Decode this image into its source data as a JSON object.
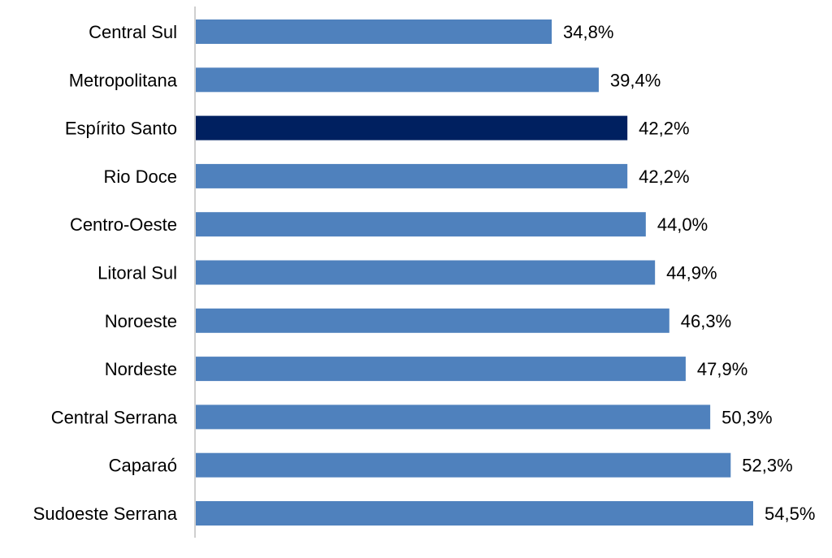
{
  "chart_data": {
    "type": "bar",
    "orientation": "horizontal",
    "categories": [
      "Central Sul",
      "Metropolitana",
      "Espírito Santo",
      "Rio Doce",
      "Centro-Oeste",
      "Litoral Sul",
      "Noroeste",
      "Nordeste",
      "Central Serrana",
      "Caparaó",
      "Sudoeste Serrana"
    ],
    "values": [
      34.8,
      39.4,
      42.2,
      42.2,
      44.0,
      44.9,
      46.3,
      47.9,
      50.3,
      52.3,
      54.5
    ],
    "value_labels": [
      "34,8%",
      "39,4%",
      "42,2%",
      "42,2%",
      "44,0%",
      "44,9%",
      "46,3%",
      "47,9%",
      "50,3%",
      "52,3%",
      "54,5%"
    ],
    "title": "",
    "xlabel": "",
    "ylabel": "",
    "xlim": [
      0,
      54.5
    ],
    "grid": false,
    "legend": "none",
    "highlight_category": "Espírito Santo",
    "colors": {
      "bar": "#4f81bd",
      "highlight": "#002060",
      "axis": "#bfbfbf",
      "text": "#000000"
    }
  }
}
